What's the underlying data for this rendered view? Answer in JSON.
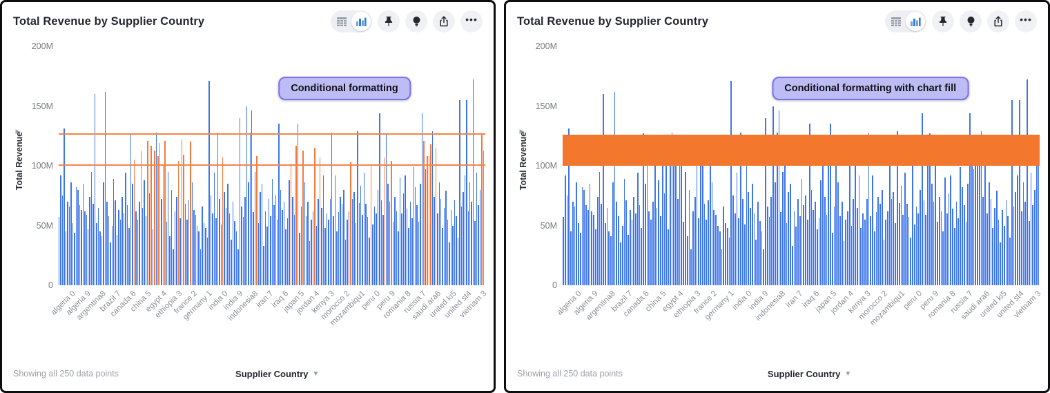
{
  "panels": [
    {
      "title": "Total Revenue by Supplier Country",
      "annotation": "Conditional formatting",
      "mode": "lines"
    },
    {
      "title": "Total Revenue by Supplier Country",
      "annotation": "Conditional formatting with chart fill",
      "mode": "fill"
    }
  ],
  "header": {
    "icons": [
      "table-view-icon",
      "chart-view-icon",
      "pin-icon",
      "insight-icon",
      "share-icon",
      "more-icon"
    ],
    "selected_view": "chart"
  },
  "footer": {
    "status": "Showing all 250 data points",
    "x_axis_dropdown": "Supplier Country"
  },
  "chart_data": {
    "type": "bar",
    "title": "Total Revenue by Supplier Country",
    "xlabel": "Supplier Country",
    "ylabel": "Total Revenue",
    "unit": "M",
    "ylim": [
      0,
      200
    ],
    "grid": false,
    "y_ticks": [
      {
        "label": "200M",
        "value": 200
      },
      {
        "label": "150M",
        "value": 150
      },
      {
        "label": "100M",
        "value": 100
      },
      {
        "label": "50M",
        "value": 50
      },
      {
        "label": "0",
        "value": 0
      }
    ],
    "x_tick_labels": [
      "algeria 0",
      "algeria 9",
      "argentina8",
      "brazil 7",
      "canada 6",
      "china 5",
      "egypt 4",
      "ethiopia 3",
      "france 2",
      "germany 1",
      "india 0",
      "india 9",
      "indonesia8",
      "iran 7",
      "iraq 6",
      "japan 5",
      "jordan 4",
      "kenya 3",
      "morocco 2",
      "mozambiqu1",
      "peru 0",
      "peru 9",
      "romania 8",
      "russia 7",
      "saudi ara6",
      "united ki5",
      "united st4",
      "vietnam 3"
    ],
    "values": [
      57,
      92,
      75,
      131,
      45,
      70,
      66,
      86,
      52,
      44,
      82,
      80,
      67,
      63,
      85,
      62,
      59,
      47,
      74,
      95,
      68,
      160,
      52,
      65,
      45,
      41,
      86,
      162,
      70,
      58,
      36,
      50,
      89,
      71,
      42,
      63,
      55,
      74,
      60,
      94,
      67,
      48,
      127,
      85,
      105,
      62,
      55,
      70,
      112,
      65,
      88,
      58,
      121,
      77,
      117,
      47,
      113,
      128,
      108,
      119,
      72,
      100,
      121,
      53,
      95,
      41,
      80,
      30,
      62,
      74,
      104,
      56,
      122,
      109,
      68,
      55,
      71,
      120,
      86,
      63,
      59,
      50,
      45,
      30,
      66,
      52,
      48,
      40,
      171,
      75,
      60,
      94,
      56,
      128,
      72,
      51,
      107,
      78,
      65,
      85,
      60,
      38,
      70,
      54,
      45,
      30,
      140,
      66,
      57,
      74,
      150,
      86,
      128,
      146,
      61,
      95,
      108,
      52,
      78,
      85,
      33,
      62,
      49,
      72,
      58,
      89,
      67,
      75,
      55,
      135,
      80,
      63,
      70,
      47,
      56,
      88,
      102,
      74,
      59,
      117,
      135,
      44,
      66,
      113,
      86,
      58,
      70,
      37,
      55,
      62,
      115,
      50,
      72,
      107,
      65,
      92,
      48,
      60,
      55,
      72,
      128,
      58,
      92,
      45,
      61,
      74,
      68,
      80,
      38,
      55,
      62,
      103,
      72,
      78,
      52,
      129,
      69,
      83,
      59,
      94,
      68,
      57,
      40,
      101,
      51,
      66,
      60,
      80,
      144,
      71,
      59,
      107,
      127,
      85,
      70,
      104,
      53,
      74,
      62,
      45,
      90,
      60,
      77,
      92,
      64,
      48,
      70,
      56,
      99,
      82,
      67,
      53,
      85,
      144,
      121,
      97,
      108,
      108,
      118,
      129,
      74,
      115,
      60,
      86,
      72,
      48,
      65,
      79,
      55,
      36,
      63,
      50,
      71,
      58,
      40,
      155,
      66,
      78,
      92,
      155,
      62,
      86,
      70,
      172,
      54,
      94,
      67,
      80,
      126,
      113
    ],
    "conditional_range": {
      "min": 100,
      "max": 126
    },
    "colors": {
      "bar": "#3d75ea",
      "highlight": "#f4793b",
      "band": "#f4772e",
      "line": "#f5834c"
    }
  }
}
